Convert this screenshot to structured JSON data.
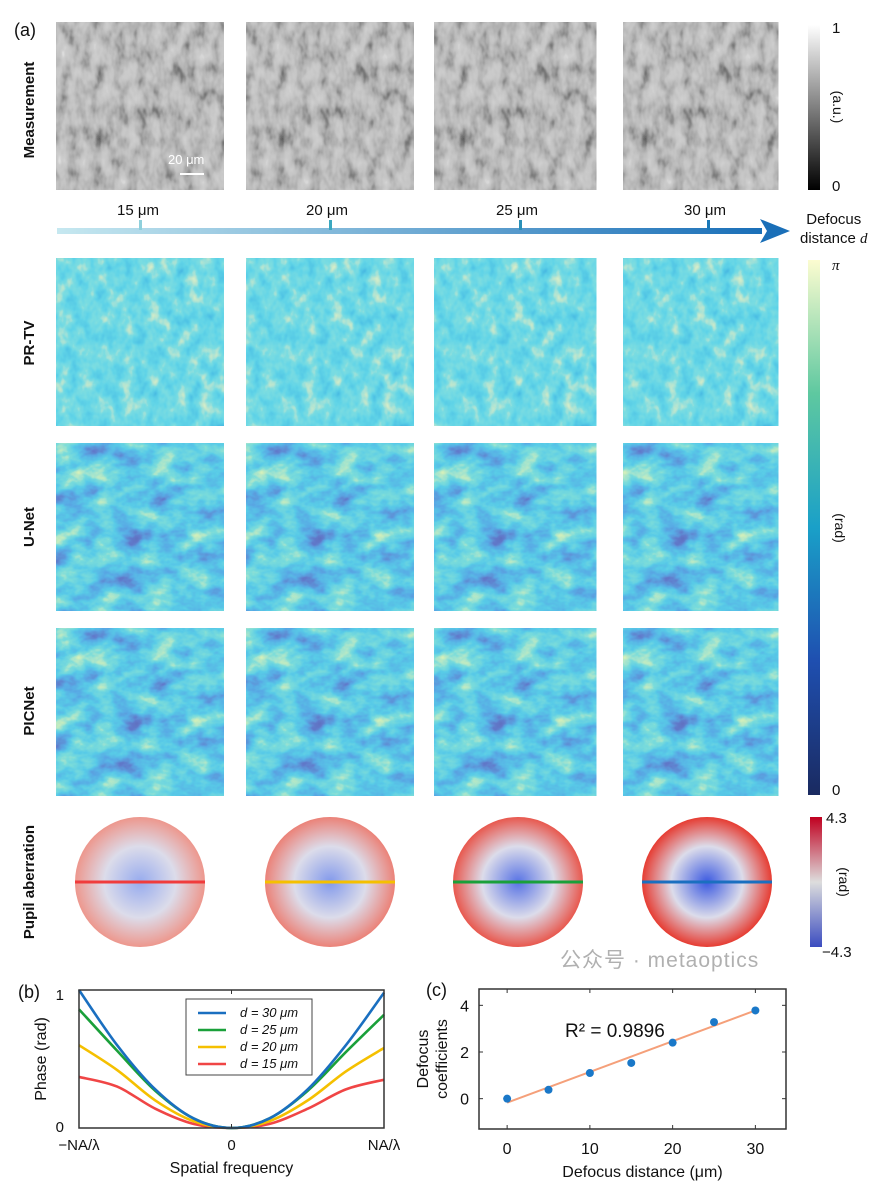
{
  "panel_a": {
    "label": "(a)",
    "rows": [
      {
        "label": "Measurement",
        "colormap": "gray"
      },
      {
        "label": "PR-TV",
        "colormap": "parula-narrow"
      },
      {
        "label": "U-Net",
        "colormap": "parula"
      },
      {
        "label": "PICNet",
        "colormap": "parula"
      },
      {
        "label": "Pupil aberration",
        "colormap": "coolwarm"
      }
    ],
    "scale_bar": "20 μm",
    "defocus_axis": {
      "ticks": [
        "15 μm",
        "20 μm",
        "25 μm",
        "30 μm"
      ],
      "label_line1": "Defocus",
      "label_line2": "distance",
      "label_symbol": "d",
      "color": "#1a78b8"
    },
    "colorbars": {
      "measurement": {
        "max": "1",
        "min": "0",
        "unit": "(a.u.)"
      },
      "phase": {
        "max": "π",
        "min": "0",
        "unit": "(rad)"
      },
      "pupil": {
        "max": "4.3",
        "min": "−4.3",
        "unit": "(rad)"
      }
    },
    "pupil_line_colors": [
      "#f03c3c",
      "#f5c000",
      "#1aa03a",
      "#1a6fc0"
    ]
  },
  "chart_data": [
    {
      "panel": "(b)",
      "type": "line",
      "xlabel": "Spatial frequency",
      "ylabel": "Phase (rad)",
      "xticks": [
        "−NA/λ",
        "0",
        "NA/λ"
      ],
      "yticks": [
        "0",
        "1"
      ],
      "xlim": [
        -1,
        1
      ],
      "ylim": [
        0,
        1
      ],
      "legend_position": "top-right",
      "x": [
        -1,
        -0.75,
        -0.5,
        -0.25,
        0,
        0.25,
        0.5,
        0.75,
        1
      ],
      "series": [
        {
          "name": "d = 30 μm",
          "color": "#1a6fc0",
          "values": [
            1.0,
            0.6,
            0.28,
            0.07,
            0,
            0.07,
            0.28,
            0.6,
            0.98
          ]
        },
        {
          "name": "d = 25 μm",
          "color": "#1aa03a",
          "values": [
            0.86,
            0.56,
            0.27,
            0.07,
            0,
            0.07,
            0.27,
            0.55,
            0.82
          ]
        },
        {
          "name": "d = 20 μm",
          "color": "#f5c000",
          "values": [
            0.6,
            0.42,
            0.2,
            0.05,
            0,
            0.05,
            0.2,
            0.41,
            0.58
          ]
        },
        {
          "name": "d = 15 μm",
          "color": "#f04545",
          "values": [
            0.37,
            0.3,
            0.14,
            0.03,
            0,
            0.03,
            0.14,
            0.28,
            0.35
          ]
        }
      ]
    },
    {
      "panel": "(c)",
      "type": "scatter",
      "xlabel": "Defocus distance (μm)",
      "ylabel_line1": "Defocus",
      "ylabel_line2": "coefficients",
      "xticks": [
        0,
        10,
        20,
        30
      ],
      "yticks": [
        0,
        2,
        4
      ],
      "xlim": [
        -3.4,
        33.7
      ],
      "ylim": [
        -1.3,
        4.7
      ],
      "annotation": "R² = 0.9896",
      "points": {
        "x": [
          0,
          5,
          10,
          15,
          20,
          25,
          30
        ],
        "y": [
          0,
          0.38,
          1.1,
          1.53,
          2.4,
          3.28,
          3.78
        ],
        "color": "#1a78c8"
      },
      "fit_line": {
        "x": [
          0,
          30
        ],
        "y": [
          -0.17,
          3.78
        ],
        "color": "#f5a07a"
      }
    }
  ],
  "watermark": "公众号 · metaoptics"
}
